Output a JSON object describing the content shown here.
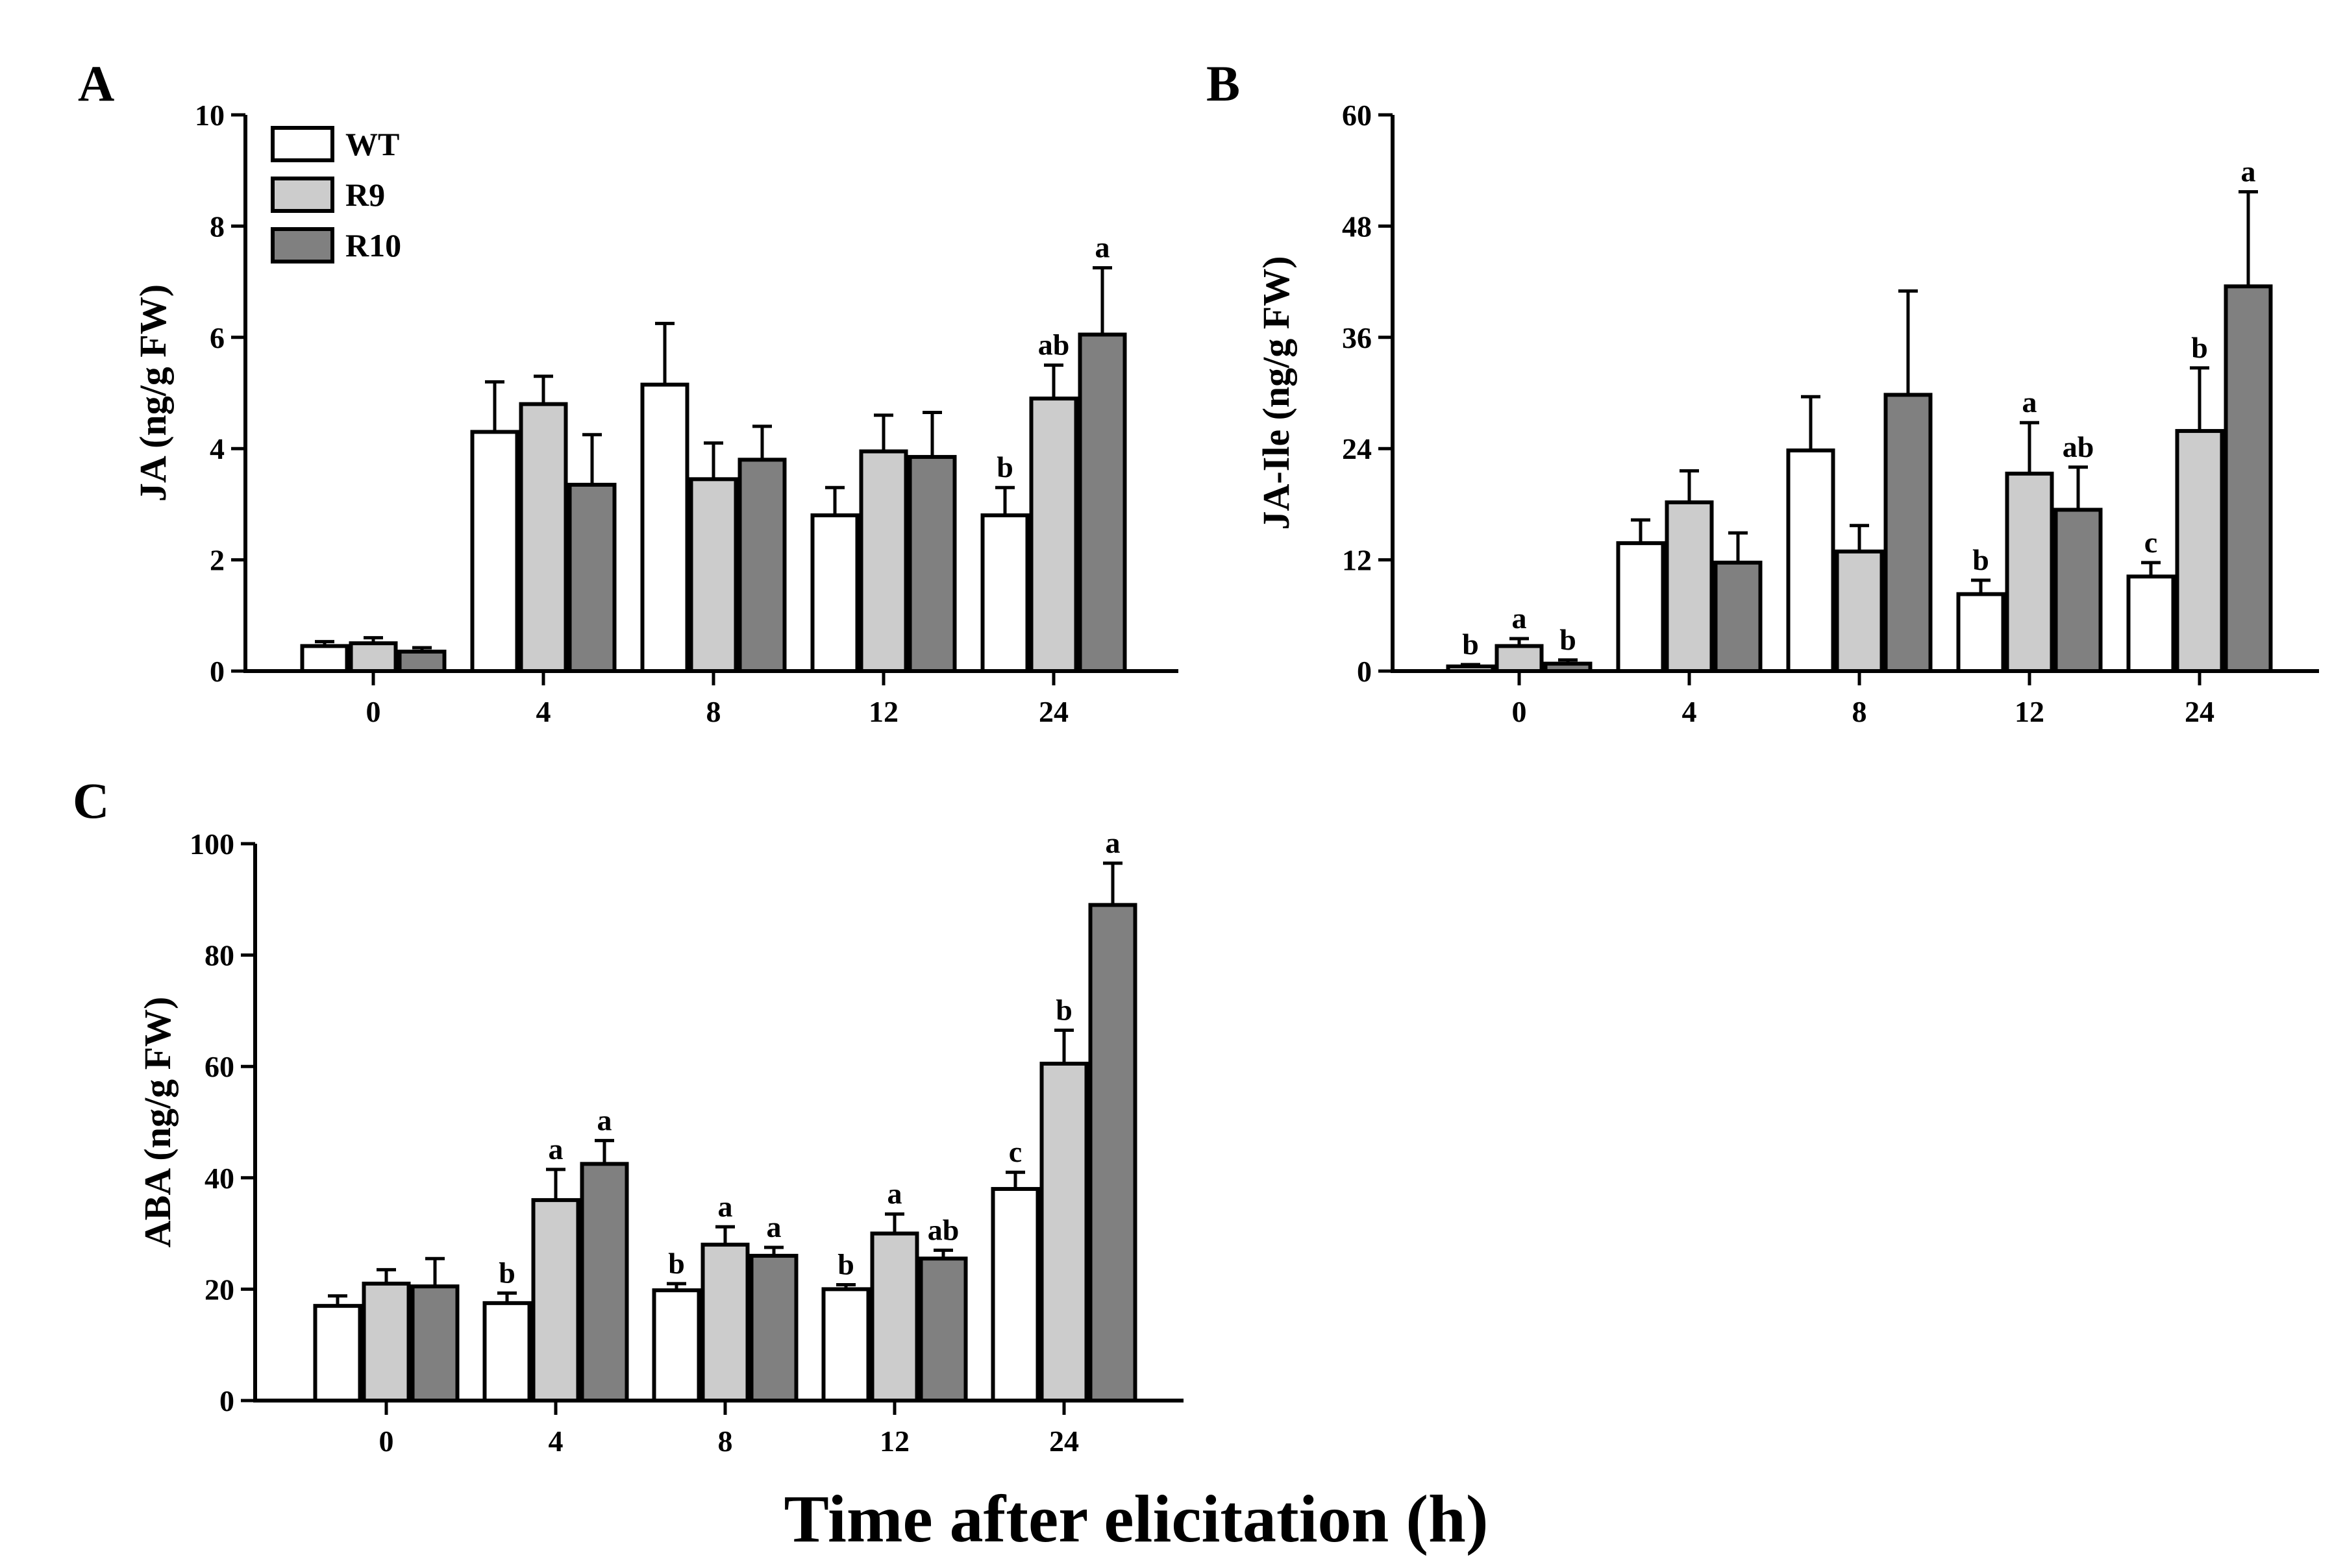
{
  "x_axis_title": "Time after elicitation (h)",
  "colors": {
    "WT": "#ffffff",
    "R9": "#cccccc",
    "R10": "#808080",
    "stroke": "#000000"
  },
  "legend": [
    {
      "label": "WT",
      "color": "#ffffff"
    },
    {
      "label": "R9",
      "color": "#cccccc"
    },
    {
      "label": "R10",
      "color": "#808080"
    }
  ],
  "chart_data": [
    {
      "panel": "A",
      "type": "bar",
      "ylabel": "JA (ng/g FW)",
      "xlabel": "Time after elicitation (h)",
      "categories": [
        "0",
        "4",
        "8",
        "12",
        "24"
      ],
      "ylim": [
        0,
        10
      ],
      "yticks": [
        "0",
        "2",
        "4",
        "6",
        "8",
        "10"
      ],
      "series": [
        {
          "name": "WT",
          "values": [
            0.45,
            4.3,
            5.15,
            2.8,
            2.8
          ],
          "errors": [
            0.08,
            0.9,
            1.1,
            0.5,
            0.5
          ],
          "letters": [
            "",
            "",
            "",
            "",
            "b"
          ]
        },
        {
          "name": "R9",
          "values": [
            0.5,
            4.8,
            3.45,
            3.95,
            4.9
          ],
          "errors": [
            0.1,
            0.5,
            0.65,
            0.65,
            0.6
          ],
          "letters": [
            "",
            "",
            "",
            "",
            "ab"
          ]
        },
        {
          "name": "R10",
          "values": [
            0.35,
            3.35,
            3.8,
            3.85,
            6.05
          ],
          "errors": [
            0.07,
            0.9,
            0.6,
            0.8,
            1.2
          ],
          "letters": [
            "",
            "",
            "",
            "",
            "a"
          ]
        }
      ]
    },
    {
      "panel": "B",
      "type": "bar",
      "ylabel": "JA-Ile (ng/g FW)",
      "xlabel": "Time after elicitation (h)",
      "categories": [
        "0",
        "4",
        "8",
        "12",
        "24"
      ],
      "ylim": [
        0,
        60
      ],
      "yticks": [
        "0",
        "12",
        "24",
        "36",
        "48",
        "60"
      ],
      "series": [
        {
          "name": "WT",
          "values": [
            0.5,
            13.8,
            23.8,
            8.3,
            10.2
          ],
          "errors": [
            0.2,
            2.5,
            5.8,
            1.5,
            1.5
          ],
          "letters": [
            "b",
            "",
            "",
            "b",
            "c"
          ]
        },
        {
          "name": "R9",
          "values": [
            2.7,
            18.2,
            12.9,
            21.3,
            25.9
          ],
          "errors": [
            0.8,
            3.4,
            2.8,
            5.5,
            6.8
          ],
          "letters": [
            "a",
            "",
            "",
            "a",
            "b"
          ]
        },
        {
          "name": "R10",
          "values": [
            0.8,
            11.7,
            29.8,
            17.4,
            41.5
          ],
          "errors": [
            0.4,
            3.2,
            11.2,
            4.6,
            10.2
          ],
          "letters": [
            "b",
            "",
            "",
            "ab",
            "a"
          ]
        }
      ]
    },
    {
      "panel": "C",
      "type": "bar",
      "ylabel": "ABA (ng/g FW)",
      "xlabel": "Time after elicitation (h)",
      "categories": [
        "0",
        "4",
        "8",
        "12",
        "24"
      ],
      "ylim": [
        0,
        100
      ],
      "yticks": [
        "0",
        "20",
        "40",
        "60",
        "80",
        "100"
      ],
      "series": [
        {
          "name": "WT",
          "values": [
            17,
            17.5,
            19.8,
            20,
            38
          ],
          "errors": [
            1.8,
            1.8,
            1.2,
            0.8,
            3.0
          ],
          "letters": [
            "",
            "b",
            "b",
            "b",
            "c"
          ]
        },
        {
          "name": "R9",
          "values": [
            21,
            36,
            28,
            30,
            60.5
          ],
          "errors": [
            2.5,
            5.5,
            3.2,
            3.5,
            6.0
          ],
          "letters": [
            "",
            "a",
            "a",
            "a",
            "b"
          ]
        },
        {
          "name": "R10",
          "values": [
            20.5,
            42.5,
            26,
            25.5,
            89
          ],
          "errors": [
            5.0,
            4.2,
            1.5,
            1.5,
            7.5
          ],
          "letters": [
            "",
            "a",
            "a",
            "ab",
            "a"
          ]
        }
      ]
    }
  ]
}
